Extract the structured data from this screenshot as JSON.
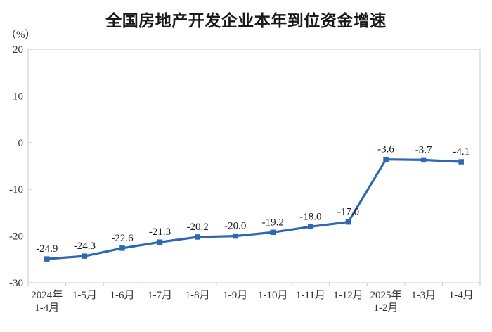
{
  "chart_data": {
    "type": "line",
    "title": "全国房地产开发企业本年到位资金增速",
    "unit_label": "（%）",
    "categories": [
      "2024年\n1-4月",
      "1-5月",
      "1-6月",
      "1-7月",
      "1-8月",
      "1-9月",
      "1-10月",
      "1-11月",
      "1-12月",
      "2025年\n1-2月",
      "1-3月",
      "1-4月"
    ],
    "values": [
      -24.9,
      -24.3,
      -22.6,
      -21.3,
      -20.2,
      -20.0,
      -19.2,
      -18.0,
      -17.0,
      -3.6,
      -3.7,
      -4.1
    ],
    "data_labels": [
      "-24.9",
      "-24.3",
      "-22.6",
      "-21.3",
      "-20.2",
      "-20.0",
      "-19.2",
      "-18.0",
      "-17.0",
      "-3.6",
      "-3.7",
      "-4.1"
    ],
    "yticks": [
      20,
      10,
      0,
      -10,
      -20,
      -30
    ],
    "ylim": [
      -30,
      20
    ],
    "grid": false,
    "legend": "none",
    "colors": {
      "line": "#2D68B2",
      "marker": "#2D68B2",
      "axis_border": "#c9c9c9",
      "tick_text": "#333333",
      "data_label_text": "#1a1a1a"
    }
  }
}
